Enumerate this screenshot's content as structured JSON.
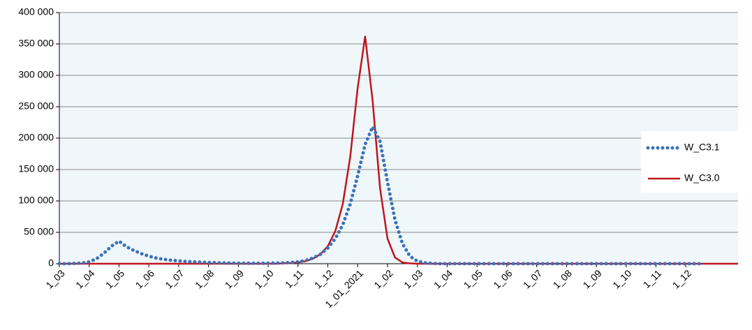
{
  "chart_data": {
    "type": "line",
    "categories": [
      "1_03",
      null,
      null,
      null,
      "1_04",
      null,
      null,
      null,
      "1_05",
      null,
      null,
      null,
      "1_06",
      null,
      null,
      null,
      "1_07",
      null,
      null,
      null,
      "1_08",
      null,
      null,
      null,
      "1_09",
      null,
      null,
      null,
      "1_10",
      null,
      null,
      null,
      "1_11",
      null,
      null,
      null,
      "1_12",
      null,
      null,
      null,
      "1_01_2021",
      null,
      null,
      null,
      "1_02",
      null,
      null,
      null,
      "1_03",
      null,
      null,
      null,
      "1_04",
      null,
      null,
      null,
      "1_05",
      null,
      null,
      null,
      "1_06",
      null,
      null,
      null,
      "1_07",
      null,
      null,
      null,
      "1_08",
      null,
      null,
      null,
      "1_09",
      null,
      null,
      null,
      "1_10",
      null,
      null,
      null,
      "1_11",
      null,
      null,
      null,
      "1_12",
      null,
      null,
      null,
      null,
      null,
      null,
      null
    ],
    "series": [
      {
        "name": "W_C3.1",
        "color": "#3a72b8",
        "style": "dotted",
        "values": [
          0,
          0,
          500,
          1000,
          3000,
          8000,
          17000,
          28000,
          36000,
          27000,
          21000,
          16000,
          12000,
          9000,
          7000,
          5500,
          4500,
          3500,
          3000,
          2500,
          2000,
          1500,
          1200,
          1000,
          900,
          800,
          700,
          700,
          800,
          1000,
          1300,
          2000,
          3000,
          5000,
          9000,
          15000,
          25000,
          40000,
          62000,
          95000,
          140000,
          190000,
          218000,
          195000,
          130000,
          70000,
          32000,
          12000,
          4000,
          1500,
          500,
          0,
          0,
          0,
          0,
          0,
          0,
          0,
          0,
          0,
          0,
          0,
          0,
          0,
          0,
          0,
          0,
          0,
          0,
          0,
          0,
          0,
          0,
          0,
          0,
          0,
          0,
          0,
          0,
          0,
          0,
          0,
          0,
          0,
          0,
          0,
          0,
          null,
          null,
          null,
          null,
          null
        ]
      },
      {
        "name": "W_C3.0",
        "color": "#c0141c",
        "style": "solid",
        "values": [
          0,
          0,
          0,
          0,
          0,
          0,
          0,
          0,
          0,
          0,
          0,
          0,
          0,
          0,
          0,
          0,
          0,
          0,
          0,
          0,
          0,
          0,
          0,
          0,
          0,
          0,
          0,
          0,
          0,
          0,
          500,
          1000,
          2000,
          4000,
          8000,
          15000,
          28000,
          52000,
          95000,
          170000,
          280000,
          362000,
          260000,
          120000,
          40000,
          10000,
          2000,
          500,
          0,
          0,
          0,
          0,
          0,
          0,
          0,
          0,
          0,
          0,
          0,
          0,
          0,
          0,
          0,
          0,
          0,
          0,
          0,
          0,
          0,
          0,
          0,
          0,
          0,
          0,
          0,
          0,
          0,
          0,
          0,
          0,
          0,
          0,
          0,
          0,
          0,
          0,
          0,
          0,
          0,
          0,
          0,
          0
        ]
      }
    ],
    "ylim": [
      0,
      400000
    ],
    "yticks": [
      {
        "value": 0,
        "label": "0"
      },
      {
        "value": 50000,
        "label": "50 000"
      },
      {
        "value": 100000,
        "label": "100 000"
      },
      {
        "value": 150000,
        "label": "150 000"
      },
      {
        "value": 200000,
        "label": "200 000"
      },
      {
        "value": 250000,
        "label": "250 000"
      },
      {
        "value": 300000,
        "label": "300 000"
      },
      {
        "value": 350000,
        "label": "350 000"
      },
      {
        "value": 400000,
        "label": "400 000"
      }
    ],
    "grid": true,
    "legend": "right",
    "background": "#f0f7fb"
  }
}
